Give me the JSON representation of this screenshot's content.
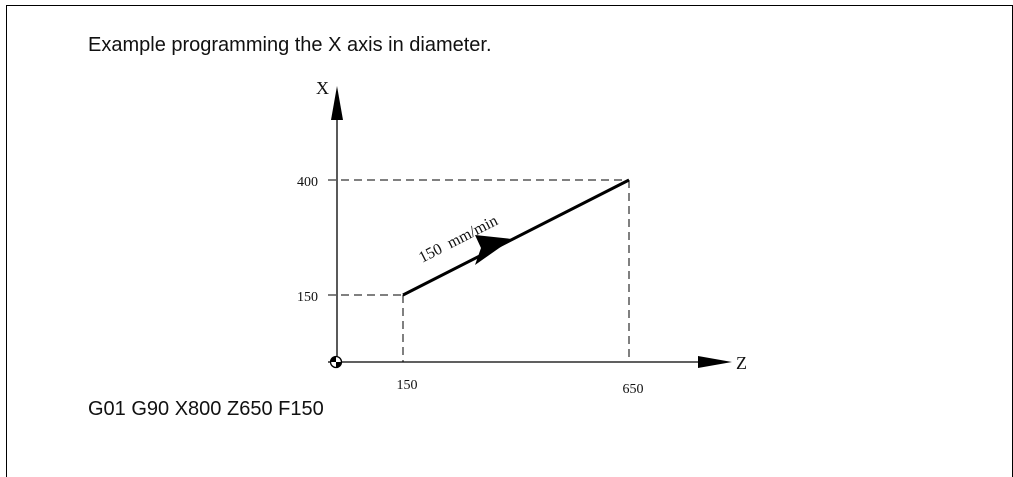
{
  "caption": "Example programming the X axis in diameter.",
  "program_line": "G01 G90 X800 Z650 F150",
  "diagram": {
    "x_axis_label": "X",
    "z_axis_label": "Z",
    "x_ticks": [
      "400",
      "150"
    ],
    "z_ticks": [
      "150",
      "650"
    ],
    "feed_label": "150  mm/min"
  }
}
